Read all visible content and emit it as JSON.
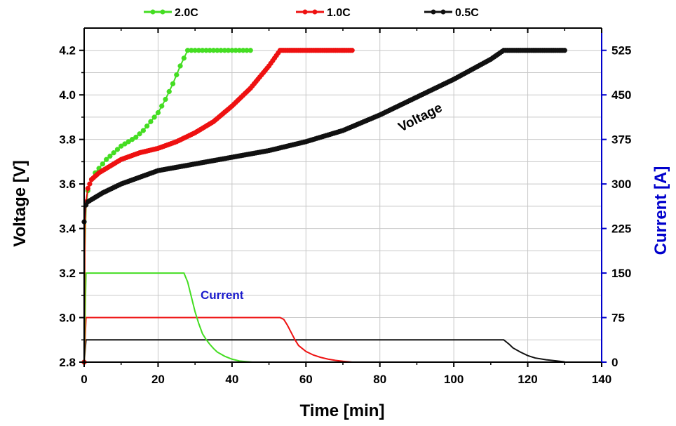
{
  "chart_data": {
    "type": "line",
    "xlabel": "Time [min]",
    "ylabel_left": "Voltage [V]",
    "ylabel_right": "Current [A]",
    "xlim": [
      0,
      140
    ],
    "ylim_left": [
      2.8,
      4.3
    ],
    "ylim_right": [
      0,
      562.5
    ],
    "x_ticks": [
      0,
      20,
      40,
      60,
      80,
      100,
      120,
      140
    ],
    "y_left_ticks": [
      2.8,
      3.0,
      3.2,
      3.4,
      3.6,
      3.8,
      4.0,
      4.2
    ],
    "y_right_ticks": [
      0,
      75,
      150,
      225,
      300,
      375,
      450,
      525
    ],
    "grid": true,
    "legend_position": "top",
    "colors": {
      "2.0C": "#44dd22",
      "1.0C": "#ee1111",
      "0.5C": "#111111",
      "right_axis": "#0000cc",
      "current_label": "#1a1acc"
    },
    "annotations": {
      "voltage": "Voltage",
      "current": "Current"
    },
    "series": [
      {
        "name": "2.0C",
        "voltage": {
          "x": [
            0,
            0.2,
            0.5,
            1,
            2,
            3,
            4,
            5,
            6,
            8,
            10,
            12,
            14,
            16,
            18,
            20,
            22,
            24,
            26,
            28,
            30,
            35,
            40,
            45
          ],
          "y": [
            2.8,
            3.3,
            3.5,
            3.57,
            3.62,
            3.65,
            3.67,
            3.69,
            3.71,
            3.74,
            3.77,
            3.79,
            3.81,
            3.84,
            3.88,
            3.92,
            3.98,
            4.05,
            4.13,
            4.2,
            4.2,
            4.2,
            4.2,
            4.2
          ]
        },
        "current": {
          "x": [
            0,
            0.5,
            27,
            28,
            29,
            30,
            31,
            32,
            33,
            34,
            35,
            36,
            38,
            40,
            42,
            44,
            45.5
          ],
          "y": [
            0,
            150,
            150,
            135,
            110,
            85,
            65,
            48,
            38,
            30,
            23,
            17,
            10,
            5,
            2,
            0.8,
            0
          ]
        }
      },
      {
        "name": "1.0C",
        "voltage": {
          "x": [
            0,
            0.2,
            0.5,
            1,
            2,
            4,
            6,
            8,
            10,
            15,
            20,
            25,
            30,
            35,
            40,
            45,
            50,
            53,
            55,
            60,
            65,
            70,
            72.5
          ],
          "y": [
            2.8,
            3.4,
            3.52,
            3.58,
            3.62,
            3.65,
            3.67,
            3.69,
            3.71,
            3.74,
            3.76,
            3.79,
            3.83,
            3.88,
            3.95,
            4.03,
            4.13,
            4.2,
            4.2,
            4.2,
            4.2,
            4.2,
            4.2
          ]
        },
        "current": {
          "x": [
            0,
            0.5,
            53,
            54,
            55,
            56,
            57,
            58,
            60,
            62,
            64,
            66,
            68,
            70,
            72.5
          ],
          "y": [
            0,
            75,
            75,
            72,
            62,
            50,
            38,
            28,
            18,
            12,
            8,
            5,
            3,
            1.5,
            0
          ]
        }
      },
      {
        "name": "0.5C",
        "voltage": {
          "x": [
            0,
            0.3,
            1,
            2,
            5,
            10,
            15,
            20,
            30,
            40,
            50,
            60,
            70,
            80,
            90,
            100,
            110,
            113.5,
            115,
            120,
            125,
            130
          ],
          "y": [
            3.43,
            3.5,
            3.52,
            3.53,
            3.56,
            3.6,
            3.63,
            3.66,
            3.69,
            3.72,
            3.75,
            3.79,
            3.84,
            3.91,
            3.99,
            4.07,
            4.16,
            4.2,
            4.2,
            4.2,
            4.2,
            4.2
          ]
        },
        "current": {
          "x": [
            0,
            0.5,
            113.5,
            114,
            115,
            116,
            118,
            120,
            122,
            125,
            128,
            130
          ],
          "y": [
            0,
            37.5,
            37.5,
            35,
            30,
            24,
            17,
            11,
            7,
            4,
            2,
            0.5
          ]
        }
      }
    ]
  }
}
